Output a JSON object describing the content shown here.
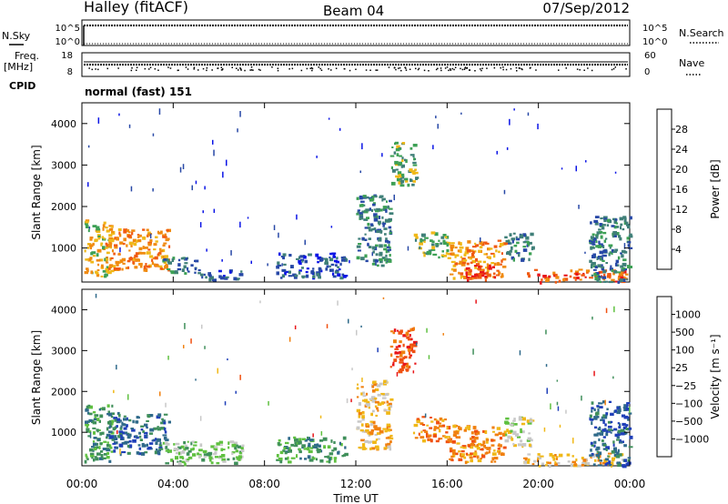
{
  "header": {
    "site": "Halley (fitACF)",
    "beam": "Beam 04",
    "date": "07/Sep/2012"
  },
  "top_panels": {
    "noise_left_label": "N.Sky",
    "noise_right_label": "N.Search",
    "noise_tick_top": "10^5",
    "noise_tick_bottom": "10^0",
    "freq_label_1": "Freq.",
    "freq_label_2": "[MHz]",
    "freq_tick_top": "18",
    "freq_tick_bottom": "8",
    "nave_label": "Nave",
    "nave_tick_top": "60",
    "nave_tick_bottom": "0",
    "cpid_label": "CPID",
    "cpid_value": "normal (fast) 151",
    "search_line_style": "dotted"
  },
  "chart_data": [
    {
      "type": "heatmap",
      "name": "power",
      "ylabel": "Slant Range [km]",
      "y_ticks": [
        "1000",
        "2000",
        "3000",
        "4000"
      ],
      "y_tick_values": [
        1000,
        2000,
        3000,
        4000
      ],
      "ylim": [
        180,
        4500
      ],
      "x_ticks": [
        "00:00",
        "04:00",
        "08:00",
        "12:00",
        "16:00",
        "20:00",
        "00:00"
      ],
      "x_tick_values": [
        0,
        4,
        8,
        12,
        16,
        20,
        24
      ],
      "xlim": [
        0,
        24
      ],
      "colorbar": {
        "label": "Power [dB]",
        "tick_labels": [
          "4",
          "8",
          "12",
          "16",
          "20",
          "24",
          "28"
        ],
        "colors": [
          "#0b14e6",
          "#2748a6",
          "#3f7f78",
          "#3da055",
          "#f0b818",
          "#f08a10",
          "#f05a12",
          "#e8161a"
        ]
      },
      "regions": [
        {
          "t0": 0.1,
          "t1": 1.3,
          "r0": 300,
          "r1": 1700,
          "level": 4
        },
        {
          "t0": 1.0,
          "t1": 3.8,
          "r0": 500,
          "r1": 1500,
          "level": 5
        },
        {
          "t0": 3.5,
          "t1": 5.0,
          "r0": 400,
          "r1": 800,
          "level": 2
        },
        {
          "t0": 5.0,
          "t1": 7.0,
          "r0": 250,
          "r1": 500,
          "level": 1
        },
        {
          "t0": 8.5,
          "t1": 11.5,
          "r0": 300,
          "r1": 900,
          "level": 1
        },
        {
          "t0": 12.0,
          "t1": 13.5,
          "r0": 600,
          "r1": 2300,
          "level": 2
        },
        {
          "t0": 13.5,
          "t1": 14.6,
          "r0": 2500,
          "r1": 3600,
          "level": 3
        },
        {
          "t0": 14.5,
          "t1": 16.0,
          "r0": 800,
          "r1": 1400,
          "level": 3
        },
        {
          "t0": 16.0,
          "t1": 18.5,
          "r0": 300,
          "r1": 1200,
          "level": 5
        },
        {
          "t0": 16.8,
          "t1": 18.2,
          "r0": 250,
          "r1": 650,
          "level": 7
        },
        {
          "t0": 18.5,
          "t1": 19.7,
          "r0": 700,
          "r1": 1400,
          "level": 2
        },
        {
          "t0": 19.3,
          "t1": 23.8,
          "r0": 200,
          "r1": 500,
          "level": 6
        },
        {
          "t0": 22.2,
          "t1": 24.0,
          "r0": 200,
          "r1": 1800,
          "level": 2
        }
      ]
    },
    {
      "type": "heatmap",
      "name": "velocity",
      "ylabel": "Slant Range [km]",
      "y_ticks": [
        "1000",
        "2000",
        "3000",
        "4000"
      ],
      "y_tick_values": [
        1000,
        2000,
        3000,
        4000
      ],
      "ylim": [
        180,
        4500
      ],
      "x_ticks": [
        "00:00",
        "04:00",
        "08:00",
        "12:00",
        "16:00",
        "20:00",
        "00:00"
      ],
      "x_tick_values": [
        0,
        4,
        8,
        12,
        16,
        20,
        24
      ],
      "xlim": [
        0,
        24
      ],
      "xlabel": "Time UT",
      "colorbar": {
        "label": "Velocity [m s⁻¹]",
        "tick_labels": [
          "1000",
          "500",
          "100",
          "25",
          "−25",
          "−100",
          "−500",
          "−1000"
        ],
        "colors": [
          "#1f3fb8",
          "#2f6a8a",
          "#3f8f5a",
          "#5fc040",
          "#c8c8c8",
          "#f0b818",
          "#f08010",
          "#f05010",
          "#e8161a"
        ]
      },
      "regions": [
        {
          "t0": 0.1,
          "t1": 1.3,
          "r0": 300,
          "r1": 1700,
          "level": 2
        },
        {
          "t0": 1.0,
          "t1": 3.8,
          "r0": 500,
          "r1": 1500,
          "level": 1
        },
        {
          "t0": 3.5,
          "t1": 7.0,
          "r0": 250,
          "r1": 800,
          "level": 3
        },
        {
          "t0": 8.5,
          "t1": 11.5,
          "r0": 300,
          "r1": 900,
          "level": 2
        },
        {
          "t0": 12.0,
          "t1": 13.5,
          "r0": 600,
          "r1": 2300,
          "level": 5
        },
        {
          "t0": 13.5,
          "t1": 14.6,
          "r0": 2500,
          "r1": 3600,
          "level": 7
        },
        {
          "t0": 14.5,
          "t1": 16.0,
          "r0": 800,
          "r1": 1400,
          "level": 6
        },
        {
          "t0": 16.0,
          "t1": 18.5,
          "r0": 300,
          "r1": 1200,
          "level": 6
        },
        {
          "t0": 18.5,
          "t1": 19.7,
          "r0": 700,
          "r1": 1400,
          "level": 4
        },
        {
          "t0": 19.3,
          "t1": 23.8,
          "r0": 200,
          "r1": 500,
          "level": 5
        },
        {
          "t0": 22.2,
          "t1": 24.0,
          "r0": 200,
          "r1": 1800,
          "level": 1
        }
      ]
    }
  ]
}
